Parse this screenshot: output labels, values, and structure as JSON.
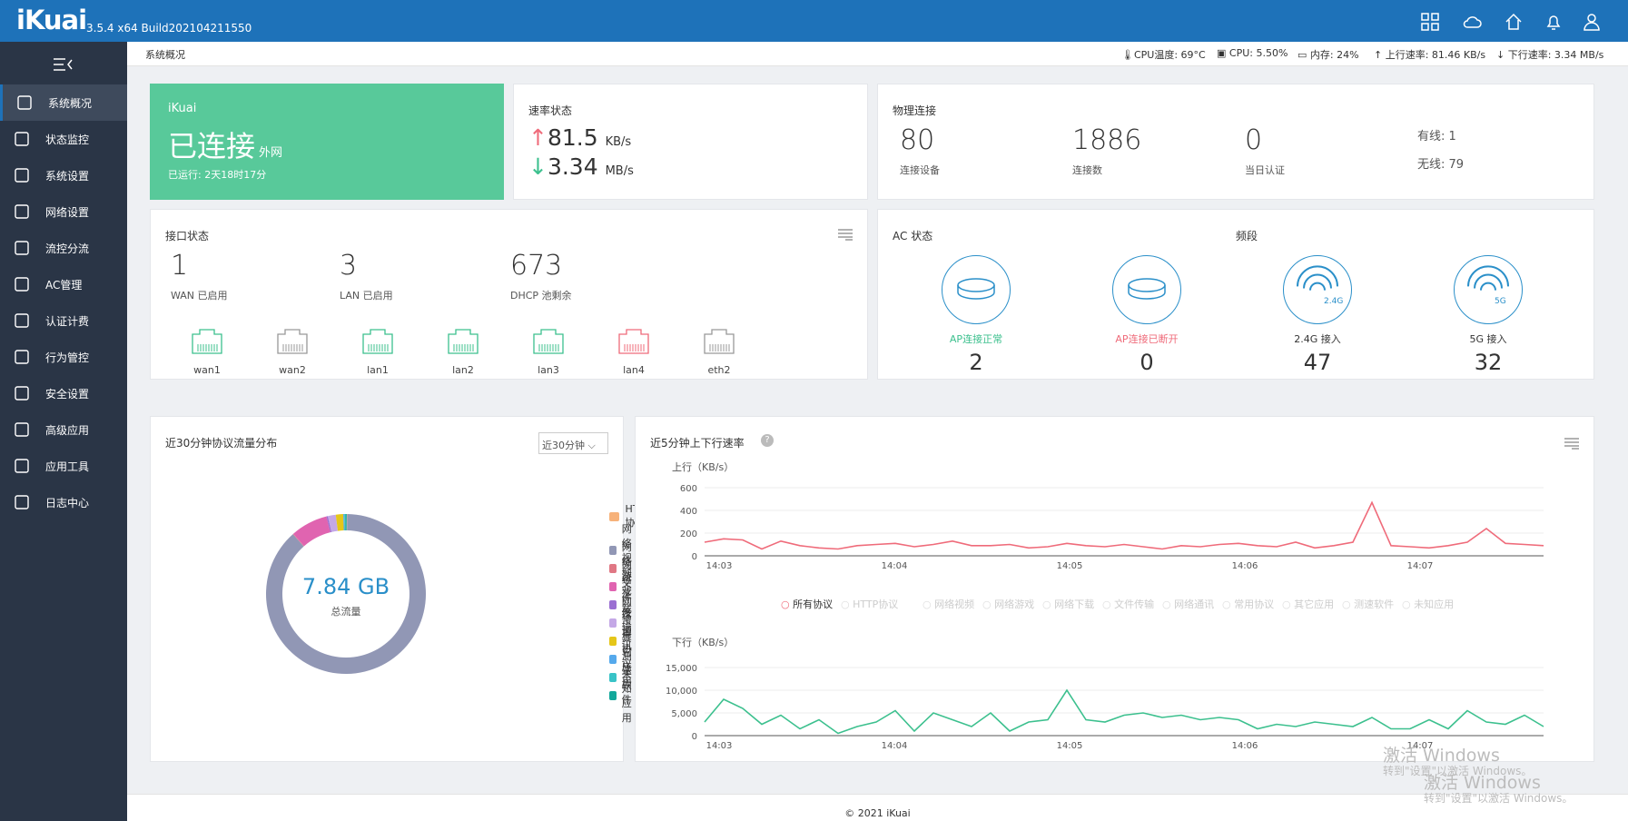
{
  "topbar": {
    "logo": "iKuai",
    "version": "3.5.4 x64 Build202104211550"
  },
  "sidebar": {
    "items": [
      {
        "label": "系统概况",
        "icon": "dashboard-icon"
      },
      {
        "label": "状态监控",
        "icon": "monitor-icon"
      },
      {
        "label": "系统设置",
        "icon": "gear-icon"
      },
      {
        "label": "网络设置",
        "icon": "network-icon"
      },
      {
        "label": "流控分流",
        "icon": "sliders-icon"
      },
      {
        "label": "AC管理",
        "icon": "wifi-icon"
      },
      {
        "label": "认证计费",
        "icon": "idcard-icon"
      },
      {
        "label": "行为管控",
        "icon": "arrows-icon"
      },
      {
        "label": "安全设置",
        "icon": "firewall-icon"
      },
      {
        "label": "高级应用",
        "icon": "checkbox-icon"
      },
      {
        "label": "应用工具",
        "icon": "tools-icon"
      },
      {
        "label": "日志中心",
        "icon": "log-icon"
      }
    ]
  },
  "header": {
    "breadcrumb": "系统概况",
    "cpu_temp": "CPU温度: 69°C",
    "cpu": "CPU: 5.50%",
    "mem": "内存: 24%",
    "up": "上行速率: 81.46 KB/s",
    "down": "下行速率: 3.34 MB/s"
  },
  "status": {
    "brand": "iKuai",
    "state": "已连接",
    "net": "外网",
    "uptime": "已运行: 2天18时17分"
  },
  "speed": {
    "title": "速率状态",
    "up_val": "81.5",
    "up_unit": "KB/s",
    "down_val": "3.34",
    "down_unit": "MB/s",
    "up_arrow": "↑",
    "down_arrow": "↓"
  },
  "physical": {
    "title": "物理连接",
    "devices": "80",
    "devices_label": "连接设备",
    "connections": "1886",
    "connections_label": "连接数",
    "auth": "0",
    "auth_label": "当日认证",
    "wired": "有线: 1",
    "wireless": "无线: 79"
  },
  "iface": {
    "title": "接口状态",
    "wan": "1",
    "wan_label": "WAN 已启用",
    "lan": "3",
    "lan_label": "LAN 已启用",
    "dhcp": "673",
    "dhcp_label": "DHCP 池剩余",
    "ports": [
      {
        "name": "wan1",
        "color": "#3cc08e"
      },
      {
        "name": "wan2",
        "color": "#999999"
      },
      {
        "name": "lan1",
        "color": "#3cc08e"
      },
      {
        "name": "lan2",
        "color": "#3cc08e"
      },
      {
        "name": "lan3",
        "color": "#3cc08e"
      },
      {
        "name": "lan4",
        "color": "#ef6b7a"
      },
      {
        "name": "eth2",
        "color": "#999999"
      }
    ]
  },
  "ac": {
    "title": "AC 状态",
    "band_title": "频段",
    "items": [
      {
        "label": "AP连接正常",
        "value": "2",
        "color": "#3cc08e",
        "badge": ""
      },
      {
        "label": "AP连接已断开",
        "value": "0",
        "color": "#ef6b7a",
        "badge": ""
      },
      {
        "label": "2.4G 接入",
        "value": "47",
        "color": "#333",
        "badge": "2.4G"
      },
      {
        "label": "5G 接入",
        "value": "32",
        "color": "#333",
        "badge": "5G"
      }
    ]
  },
  "proto": {
    "title": "近30分钟协议流量分布",
    "select": "近30分钟",
    "total": "7.84 GB",
    "total_label": "总流量",
    "legend": [
      {
        "name": "HTTP协议",
        "color": "#f7b27a"
      },
      {
        "name": "网络视频",
        "color": "#9197b5"
      },
      {
        "name": "网络游戏",
        "color": "#e07784"
      },
      {
        "name": "网络下载",
        "color": "#e064b0"
      },
      {
        "name": "文件传输",
        "color": "#9b6fd2"
      },
      {
        "name": "网络通讯",
        "color": "#c4a8e6"
      },
      {
        "name": "常用协议",
        "color": "#e5c619"
      },
      {
        "name": "其它应用",
        "color": "#55a9ec"
      },
      {
        "name": "测速软件",
        "color": "#39c3c7"
      },
      {
        "name": "未知应用",
        "color": "#13a89b"
      }
    ]
  },
  "chart_data": [
    {
      "type": "pie",
      "title": "近30分钟协议流量分布",
      "labels": [
        "HTTP协议",
        "网络视频",
        "网络游戏",
        "网络下载",
        "文件传输",
        "网络通讯",
        "常用协议",
        "其它应用",
        "测速软件",
        "未知应用"
      ],
      "values": [
        0.1,
        88.2,
        0.1,
        7.5,
        0.3,
        1.6,
        1.5,
        0.2,
        0.2,
        0.3
      ],
      "total": "7.84 GB"
    },
    {
      "type": "line",
      "title": "近5分钟上下行速率",
      "ylabel": "上行（KB/s）",
      "ylim": [
        0,
        600
      ],
      "yticks": [
        "0",
        "200",
        "400",
        "600"
      ],
      "xticks": [
        "14:03",
        "14:04",
        "14:05",
        "14:06",
        "14:07"
      ],
      "series": [
        {
          "name": "所有协议",
          "color": "#ef6b7a",
          "values": [
            120,
            150,
            140,
            60,
            130,
            90,
            70,
            60,
            90,
            100,
            110,
            80,
            100,
            130,
            90,
            90,
            100,
            70,
            80,
            110,
            90,
            80,
            100,
            80,
            60,
            90,
            80,
            100,
            110,
            90,
            80,
            120,
            70,
            90,
            120,
            470,
            90,
            80,
            70,
            90,
            120,
            240,
            110,
            100,
            90
          ]
        }
      ]
    },
    {
      "type": "line",
      "title": "下行",
      "ylabel": "下行（KB/s）",
      "ylim": [
        0,
        15000
      ],
      "yticks": [
        "0",
        "5,000",
        "10,000",
        "15,000"
      ],
      "xticks": [
        "14:03",
        "14:04",
        "14:05",
        "14:06",
        "14:07"
      ],
      "series": [
        {
          "name": "所有协议",
          "color": "#3cc08e",
          "values": [
            3000,
            8000,
            6000,
            2500,
            4500,
            1500,
            3500,
            500,
            2000,
            3000,
            5500,
            1000,
            5000,
            3500,
            2000,
            5000,
            1000,
            3000,
            3500,
            10000,
            3500,
            3000,
            4500,
            5000,
            4000,
            4500,
            3500,
            4000,
            3500,
            1500,
            2500,
            2000,
            3000,
            2500,
            2000,
            4000,
            1500,
            1500,
            3500,
            1500,
            5500,
            3000,
            2500,
            4500,
            2000
          ]
        }
      ]
    }
  ],
  "rate": {
    "title": "近5分钟上下行速率",
    "help": "?",
    "up_label": "上行（KB/s）",
    "down_label": "下行（KB/s）",
    "up_ticks": [
      "600",
      "400",
      "200",
      "0"
    ],
    "down_ticks": [
      "15,000",
      "10,000",
      "5,000",
      "0"
    ],
    "xticks": [
      "14:03",
      "14:04",
      "14:05",
      "14:06",
      "14:07"
    ],
    "legend": [
      {
        "name": "所有协议",
        "active": true
      },
      {
        "name": "HTTP协议"
      },
      {
        "name": "网络视频"
      },
      {
        "name": "网络游戏"
      },
      {
        "name": "网络下载"
      },
      {
        "name": "文件传输"
      },
      {
        "name": "网络通讯"
      },
      {
        "name": "常用协议"
      },
      {
        "name": "其它应用"
      },
      {
        "name": "测速软件"
      },
      {
        "name": "未知应用"
      }
    ]
  },
  "footer": "© 2021 iKuai",
  "watermark": {
    "title": "激活 Windows",
    "sub": "转到\"设置\"以激活 Windows。"
  }
}
